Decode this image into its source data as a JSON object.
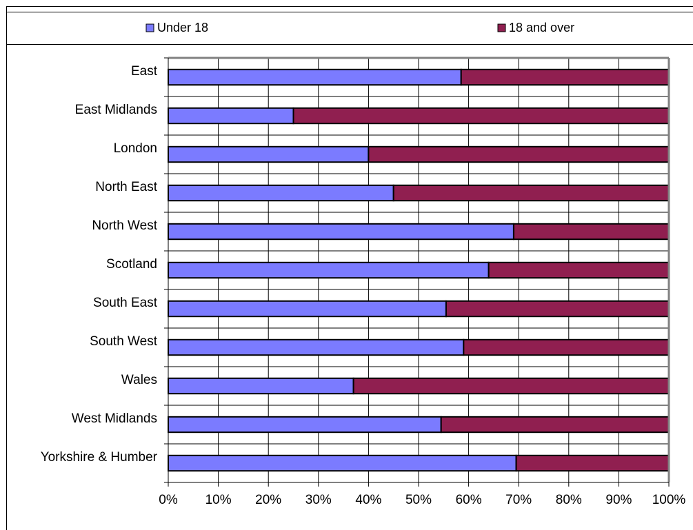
{
  "chart_data": {
    "type": "bar",
    "stacked": true,
    "orientation": "horizontal",
    "percent_stacked": true,
    "categories": [
      "East",
      "East Midlands",
      "London",
      "North East",
      "North West",
      "Scotland",
      "South East",
      "South West",
      "Wales",
      "West Midlands",
      "Yorkshire & Humber"
    ],
    "series": [
      {
        "name": "Under 18",
        "color": "#7b7bff",
        "values": [
          58.5,
          25,
          40,
          45,
          69,
          64,
          55.5,
          59,
          37,
          54.5,
          69.5
        ]
      },
      {
        "name": "18 and over",
        "color": "#901f50",
        "values": [
          41.5,
          75,
          60,
          55,
          31,
          36,
          44.5,
          41,
          63,
          45.5,
          30.5
        ]
      }
    ],
    "xlim": [
      0,
      100
    ],
    "x_ticks": [
      "0%",
      "10%",
      "20%",
      "30%",
      "40%",
      "50%",
      "60%",
      "70%",
      "80%",
      "90%",
      "100%"
    ],
    "grid": true,
    "legend": "top"
  }
}
